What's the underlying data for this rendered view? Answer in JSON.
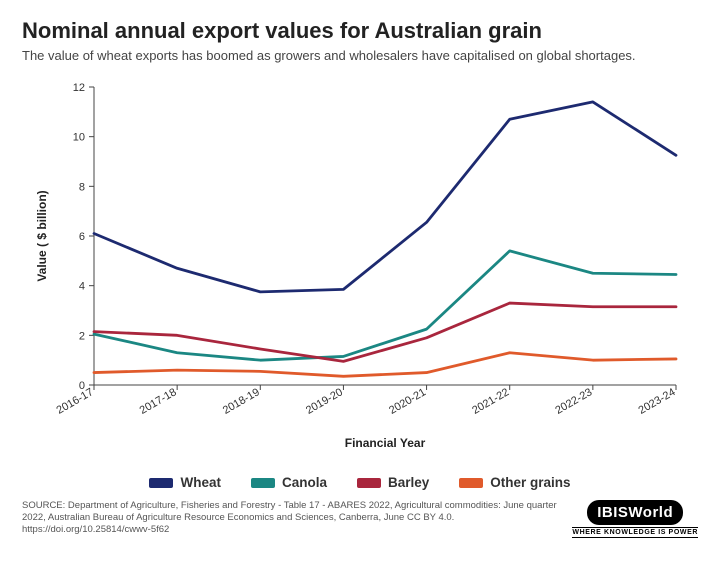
{
  "title": "Nominal annual export values for Australian grain",
  "subtitle": "The value of wheat exports has boomed as growers and wholesalers have capitalised on global shortages.",
  "chart": {
    "type": "line",
    "xlabel": "Financial Year",
    "ylabel": "Value ( $ billion)",
    "label_fontsize": 12,
    "label_weight": "700",
    "tick_fontsize": 11,
    "background_color": "#ffffff",
    "axis_color": "#444444",
    "tick_color": "#444444",
    "line_width": 2.8,
    "categories": [
      "2016-17",
      "2017-18",
      "2018-19",
      "2019-20",
      "2020-21",
      "2021-22",
      "2022-23",
      "2023-24"
    ],
    "ylim": [
      0,
      12
    ],
    "ytick_step": 2,
    "series": [
      {
        "name": "Wheat",
        "color": "#1d2a70",
        "values": [
          6.1,
          4.7,
          3.75,
          3.85,
          6.55,
          10.7,
          11.4,
          9.25
        ]
      },
      {
        "name": "Canola",
        "color": "#1b8783",
        "values": [
          2.05,
          1.3,
          1.0,
          1.15,
          2.25,
          5.4,
          4.5,
          4.45
        ]
      },
      {
        "name": "Barley",
        "color": "#a9263d",
        "values": [
          2.15,
          2.0,
          1.45,
          0.95,
          1.9,
          3.3,
          3.15,
          3.15
        ]
      },
      {
        "name": "Other grains",
        "color": "#e05a2b",
        "values": [
          0.5,
          0.6,
          0.55,
          0.35,
          0.5,
          1.3,
          1.0,
          1.05
        ]
      }
    ]
  },
  "legend_title": "",
  "source": "SOURCE: Department of Agriculture, Fisheries and Forestry - Table 17 - ABARES 2022, Agricultural commodities: June quarter 2022, Australian Bureau of Agriculture Resource Economics and Sciences, Canberra, June CC BY 4.0. https://doi.org/10.25814/cwwv-5f62",
  "brand": "IBISWorld",
  "brand_tag": "Where Knowledge Is Power"
}
